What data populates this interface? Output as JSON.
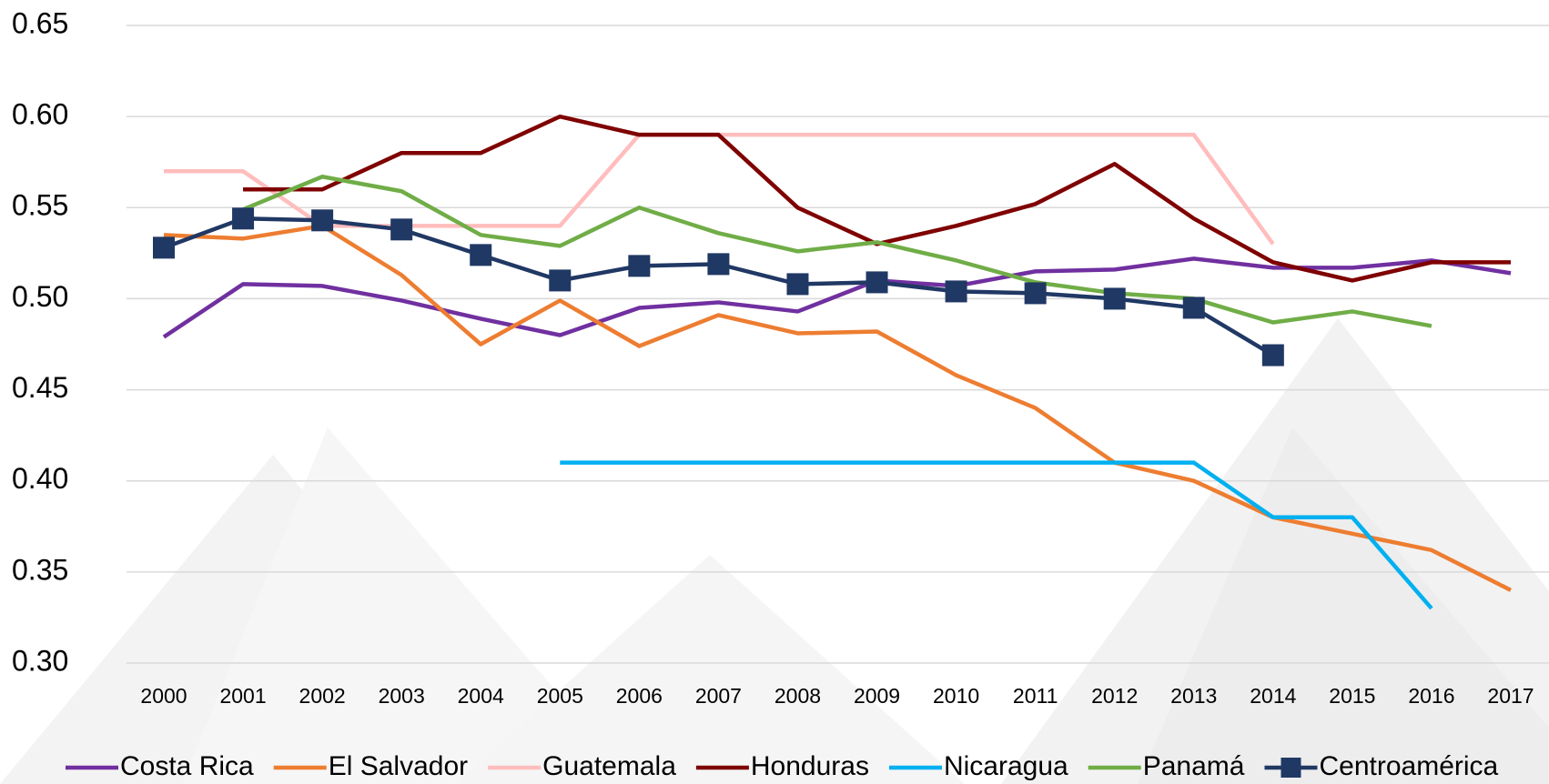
{
  "chart_data": {
    "type": "line",
    "categories": [
      "2000",
      "2001",
      "2002",
      "2003",
      "2004",
      "2005",
      "2006",
      "2007",
      "2008",
      "2009",
      "2010",
      "2011",
      "2012",
      "2013",
      "2014",
      "2015",
      "2016",
      "2017"
    ],
    "ylim": [
      0.3,
      0.65
    ],
    "yticks": [
      {
        "value": 0.3,
        "label": "0.30"
      },
      {
        "value": 0.35,
        "label": "0.35"
      },
      {
        "value": 0.4,
        "label": "0.40"
      },
      {
        "value": 0.45,
        "label": "0.45"
      },
      {
        "value": 0.5,
        "label": "0.50"
      },
      {
        "value": 0.55,
        "label": "0.55"
      },
      {
        "value": 0.6,
        "label": "0.60"
      },
      {
        "value": 0.65,
        "label": "0.65"
      }
    ],
    "grid": true,
    "legend": "bottom",
    "series": [
      {
        "name": "Costa Rica",
        "color": "#7030a0",
        "values": [
          0.479,
          0.508,
          0.507,
          0.499,
          0.489,
          0.48,
          0.495,
          0.498,
          0.493,
          0.51,
          0.507,
          0.515,
          0.516,
          0.522,
          0.517,
          0.517,
          0.521,
          0.514
        ]
      },
      {
        "name": "El Salvador",
        "color": "#ed7d31",
        "values": [
          0.535,
          0.533,
          0.54,
          0.513,
          0.475,
          0.499,
          0.474,
          0.491,
          0.481,
          0.482,
          0.458,
          0.44,
          0.41,
          0.4,
          0.38,
          0.371,
          0.362,
          0.34
        ]
      },
      {
        "name": "Guatemala",
        "color": "#ffbdbd",
        "values": [
          0.57,
          0.57,
          0.54,
          0.54,
          0.54,
          0.54,
          0.59,
          0.59,
          0.59,
          0.59,
          0.59,
          0.59,
          0.59,
          0.59,
          0.53,
          null,
          null,
          null
        ]
      },
      {
        "name": "Honduras",
        "color": "#7f0000",
        "values": [
          null,
          0.56,
          0.56,
          0.58,
          0.58,
          0.6,
          0.59,
          0.59,
          0.55,
          0.53,
          0.54,
          0.552,
          0.574,
          0.544,
          0.52,
          0.51,
          0.52,
          0.52
        ]
      },
      {
        "name": "Nicaragua",
        "color": "#00b0f0",
        "values": [
          null,
          null,
          null,
          null,
          null,
          0.41,
          0.41,
          0.41,
          0.41,
          0.41,
          0.41,
          0.41,
          0.41,
          0.41,
          0.38,
          0.38,
          0.33,
          null
        ]
      },
      {
        "name": "Panamá",
        "color": "#70ad47",
        "values": [
          null,
          0.549,
          0.567,
          0.559,
          0.535,
          0.529,
          0.55,
          0.536,
          0.526,
          0.531,
          0.521,
          0.509,
          0.503,
          0.5,
          0.487,
          0.493,
          0.485,
          null
        ]
      },
      {
        "name": "Centroamérica",
        "color": "#203864",
        "marker": "square",
        "values": [
          0.528,
          0.544,
          0.543,
          0.538,
          0.524,
          0.51,
          0.518,
          0.519,
          0.508,
          0.509,
          0.504,
          0.503,
          0.5,
          0.495,
          0.469,
          null,
          null,
          null
        ]
      }
    ]
  }
}
